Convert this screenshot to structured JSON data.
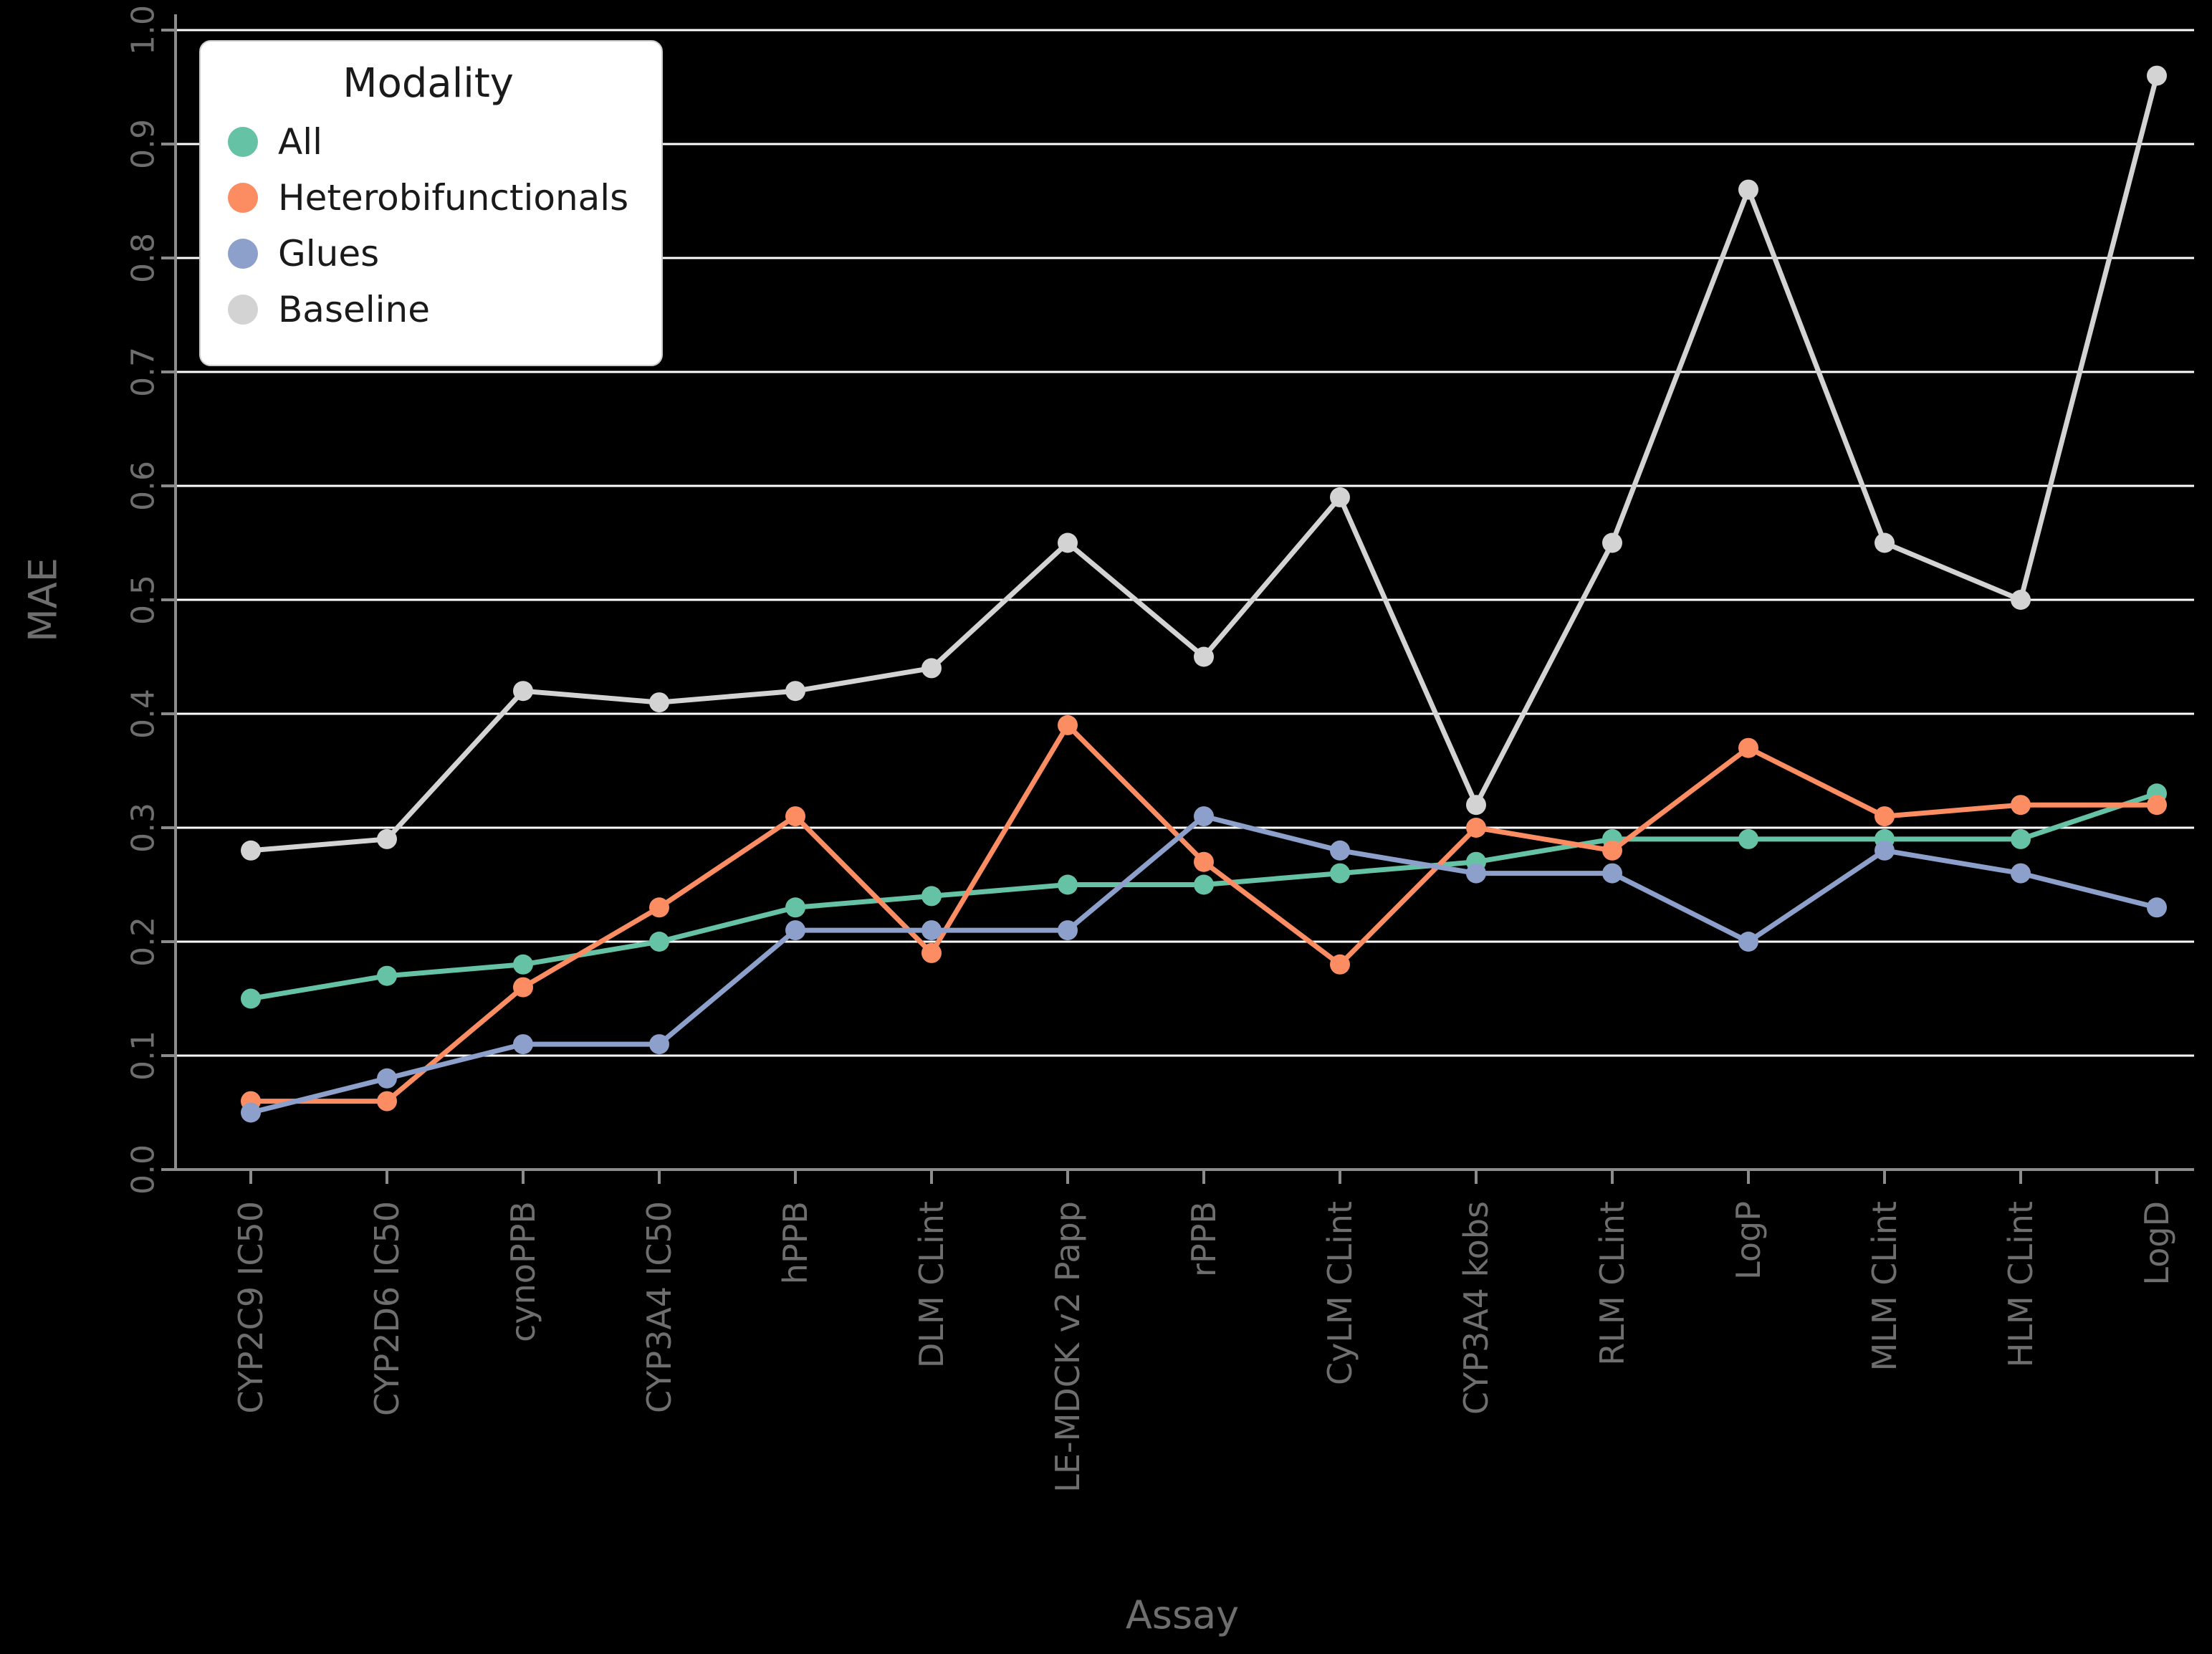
{
  "chart_data": {
    "type": "line",
    "title": "",
    "xlabel": "Assay",
    "ylabel": "MAE",
    "ylim": [
      0.0,
      1.0
    ],
    "yticks": [
      0.0,
      0.1,
      0.2,
      0.3,
      0.4,
      0.5,
      0.6,
      0.7,
      0.8,
      0.9,
      1.0
    ],
    "ytick_labels": [
      "0.0",
      "0.1",
      "0.2",
      "0.3",
      "0.4",
      "0.5",
      "0.6",
      "0.7",
      "0.8",
      "0.9",
      "1.0"
    ],
    "categories": [
      "CYP2C9 IC50",
      "CYP2D6 IC50",
      "cynoPPB",
      "CYP3A4 IC50",
      "hPPB",
      "DLM CLint",
      "LE-MDCK v2 Papp",
      "rPPB",
      "CyLM CLint",
      "CYP3A4 kobs",
      "RLM CLint",
      "LogP",
      "MLM CLint",
      "HLM CLint",
      "LogD"
    ],
    "series": [
      {
        "name": "All",
        "color": "#66c2a5",
        "values": [
          0.15,
          0.17,
          0.18,
          0.2,
          0.23,
          0.24,
          0.25,
          0.25,
          0.26,
          0.27,
          0.29,
          0.29,
          0.29,
          0.29,
          0.33
        ]
      },
      {
        "name": "Heterobifunctionals",
        "color": "#fc8d62",
        "values": [
          0.06,
          0.06,
          0.16,
          0.23,
          0.31,
          0.19,
          0.39,
          0.27,
          0.18,
          0.3,
          0.28,
          0.37,
          0.31,
          0.32,
          0.32
        ]
      },
      {
        "name": "Glues",
        "color": "#8da0cb",
        "values": [
          0.05,
          0.08,
          0.11,
          0.11,
          0.21,
          0.21,
          0.21,
          0.31,
          0.28,
          0.26,
          0.26,
          0.2,
          0.28,
          0.26,
          0.23
        ]
      },
      {
        "name": "Baseline",
        "color": "#d3d3d3",
        "values": [
          0.28,
          0.29,
          0.42,
          0.41,
          0.42,
          0.44,
          0.55,
          0.45,
          0.59,
          0.32,
          0.55,
          0.86,
          0.55,
          0.5,
          0.96
        ]
      }
    ],
    "legend": {
      "title": "Modality",
      "position": "upper left"
    },
    "grid": true,
    "colors": {
      "background": "#000000",
      "gridline": "#ffffff",
      "spine": "#8c8c8c",
      "tick_text": "#6e6e6e",
      "legend_bg": "#ffffff",
      "legend_border": "#cccccc",
      "legend_text": "#1a1a1a"
    }
  }
}
